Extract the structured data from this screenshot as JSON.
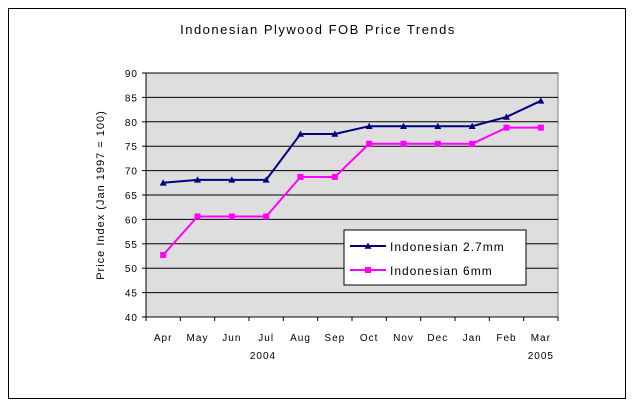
{
  "chart_data": {
    "type": "line",
    "title": "Indonesian Plywood FOB Price Trends",
    "ylabel": "Price Index (Jan 1997 = 100)",
    "xlabel": "",
    "categories": [
      "Apr",
      "May",
      "Jun",
      "Jul",
      "Aug",
      "Sep",
      "Oct",
      "Nov",
      "Dec",
      "Jan",
      "Feb",
      "Mar"
    ],
    "year_labels": [
      "2004",
      "2005"
    ],
    "ylim": [
      40,
      90
    ],
    "yticks": [
      40,
      45,
      50,
      55,
      60,
      65,
      70,
      75,
      80,
      85,
      90
    ],
    "grid": true,
    "legend_position": "lower-right",
    "series": [
      {
        "name": "Indonesian 2.7mm",
        "color": "#000080",
        "marker": "triangle",
        "values": [
          67.5,
          68.1,
          68.1,
          68.1,
          77.5,
          77.5,
          79.1,
          79.1,
          79.1,
          79.1,
          81.0,
          84.3
        ]
      },
      {
        "name": "Indonesian 6mm",
        "color": "#ff00ff",
        "marker": "square",
        "values": [
          52.7,
          60.6,
          60.6,
          60.6,
          68.7,
          68.7,
          75.5,
          75.5,
          75.5,
          75.5,
          78.8,
          78.8
        ]
      }
    ],
    "plot_background": "#dedede"
  }
}
